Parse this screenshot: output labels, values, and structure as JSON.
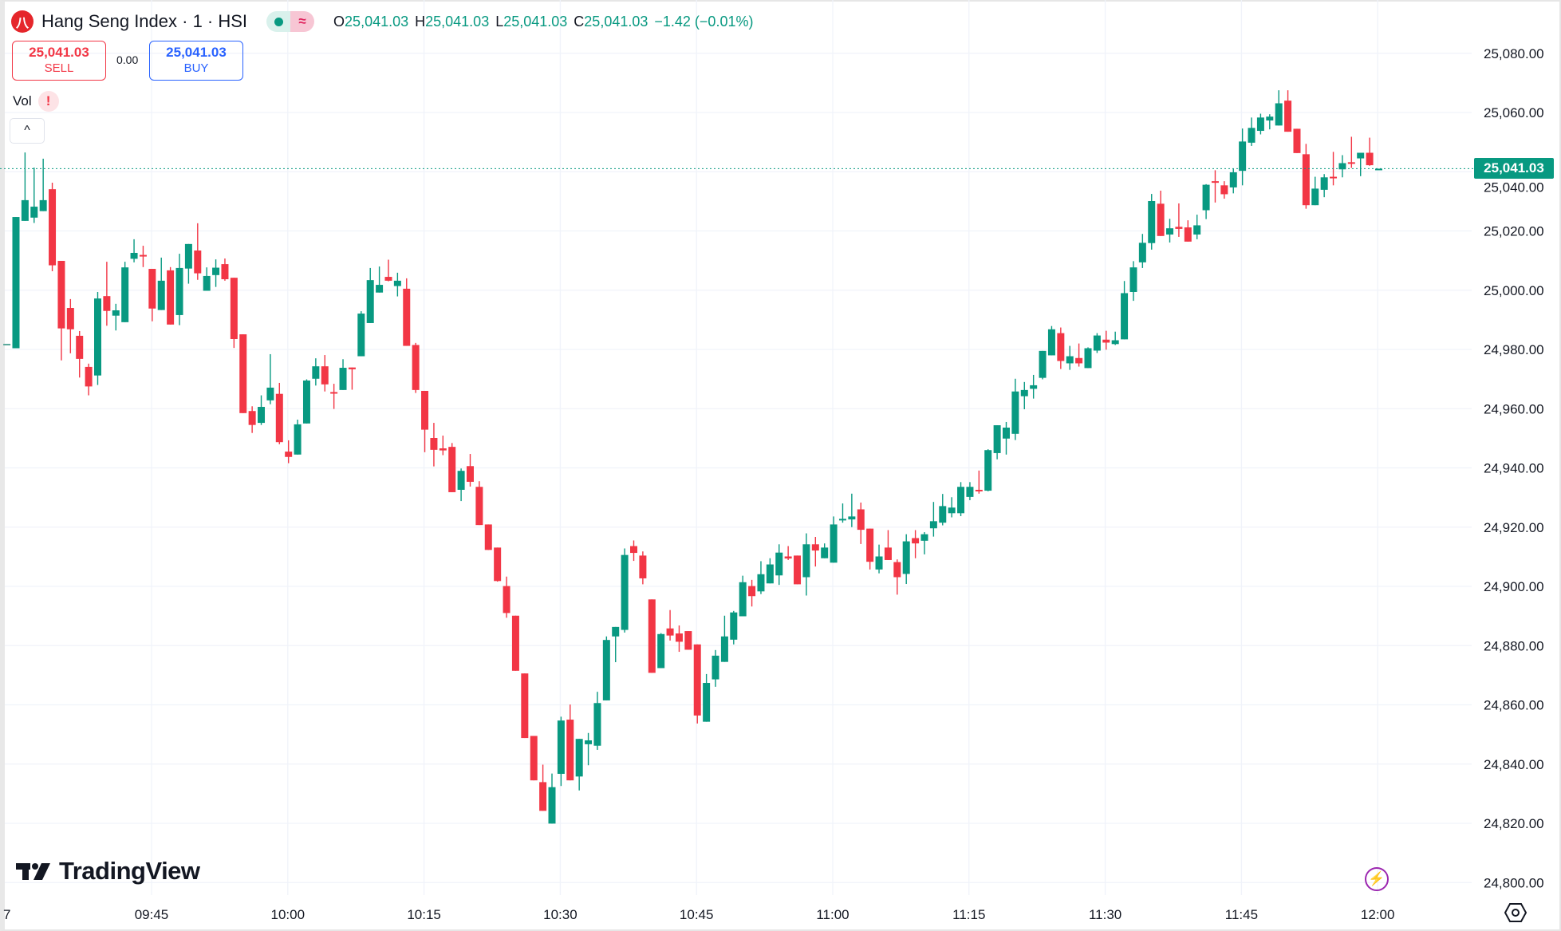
{
  "header": {
    "logo_text": "八",
    "title": "Hang Seng Index · 1 · HSI",
    "market_status": "open",
    "ohlc": {
      "o_label": "O",
      "o": "25,041.03",
      "h_label": "H",
      "h": "25,041.03",
      "l_label": "L",
      "l": "25,041.03",
      "c_label": "C",
      "c": "25,041.03",
      "change": "−1.42 (−0.01%)"
    }
  },
  "trade": {
    "sell_price": "25,041.03",
    "sell_label": "SELL",
    "spread": "0.00",
    "buy_price": "25,041.03",
    "buy_label": "BUY"
  },
  "indicators": {
    "vol_label": "Vol",
    "vol_warning": "!"
  },
  "collapse_icon": "^",
  "brand": "TradingView",
  "last_price_label": "25,041.03",
  "colors": {
    "up": "#089981",
    "down": "#F23645",
    "grid": "#f0f3fa",
    "accent": "#9c27b0"
  },
  "chart_data": {
    "type": "candlestick",
    "interval": "1",
    "format": "[open, high, low, close]",
    "ylim": [
      24795,
      25085
    ],
    "grid": true,
    "y_ticks": [
      "25,080.00",
      "25,060.00",
      "25,040.00",
      "25,020.00",
      "25,000.00",
      "24,980.00",
      "24,960.00",
      "24,940.00",
      "24,920.00",
      "24,900.00",
      "24,880.00",
      "24,860.00",
      "24,840.00",
      "24,820.00",
      "24,800.00"
    ],
    "x_ticks": [
      "7",
      "09:45",
      "10:00",
      "10:15",
      "10:30",
      "10:45",
      "11:00",
      "11:15",
      "11:30",
      "11:45",
      "12:00"
    ],
    "last_price": 25041.03,
    "candles": [
      [
        24981.9,
        24981.9,
        24981.9,
        24981.9
      ],
      [
        24980.4,
        25024.7,
        24980.4,
        25024.7
      ],
      [
        25023.4,
        25046.5,
        25023.4,
        25030.4
      ],
      [
        25024.5,
        25041.4,
        25022.7,
        25028.2
      ],
      [
        25026.7,
        25044.4,
        25026.7,
        25030.4
      ],
      [
        25034.1,
        25036.3,
        25006.4,
        25008.4
      ],
      [
        25009.9,
        25009.9,
        24976.3,
        24987.1
      ],
      [
        24994.0,
        24997.0,
        24978.7,
        24986.8
      ],
      [
        24984.6,
        24986.2,
        24970.5,
        24976.8
      ],
      [
        24974.1,
        24975.2,
        24964.5,
        24967.5
      ],
      [
        24971.2,
        24999.4,
        24968.0,
        24997.2
      ],
      [
        24998.0,
        25009.6,
        24988.0,
        24993.0
      ],
      [
        24991.4,
        24995.4,
        24986.4,
        24993.2
      ],
      [
        24989.2,
        25009.6,
        24989.2,
        25007.7
      ],
      [
        25010.6,
        25017.2,
        25009.4,
        25012.6
      ],
      [
        25011.9,
        25015.0,
        25007.8,
        25011.6
      ],
      [
        25007.2,
        25007.2,
        24989.5,
        24993.8
      ],
      [
        24993.3,
        25011.0,
        24993.3,
        25003.2
      ],
      [
        25006.7,
        25007.8,
        24988.4,
        24988.4
      ],
      [
        24991.6,
        25012.3,
        24988.2,
        25007.5
      ],
      [
        25007.3,
        25015.6,
        25002.2,
        25015.6
      ],
      [
        25013.4,
        25022.6,
        25003.5,
        25005.7
      ],
      [
        24999.8,
        25007.7,
        24999.8,
        25004.8
      ],
      [
        25005.1,
        25010.4,
        25001.1,
        25007.6
      ],
      [
        25008.8,
        25010.7,
        25003.2,
        25003.7
      ],
      [
        25004.2,
        25004.2,
        24980.5,
        24983.5
      ],
      [
        24985.1,
        24985.1,
        24958.5,
        24958.5
      ],
      [
        24959.2,
        24960.8,
        24951.8,
        24954.5
      ],
      [
        24955.2,
        24964.5,
        24954.5,
        24960.6
      ],
      [
        24962.8,
        24978.4,
        24961.5,
        24967.1
      ],
      [
        24965.0,
        24968.7,
        24948.0,
        24948.7
      ],
      [
        24945.5,
        24949.3,
        24941.6,
        24943.7
      ],
      [
        24944.5,
        24956.3,
        24944.5,
        24954.7
      ],
      [
        24955.0,
        24969.9,
        24955.0,
        24969.5
      ],
      [
        24970.1,
        24977.0,
        24967.8,
        24974.3
      ],
      [
        24974.3,
        24978.1,
        24965.8,
        24968.2
      ],
      [
        24965.6,
        24968.4,
        24959.9,
        24965.3
      ],
      [
        24966.3,
        24976.7,
        24966.3,
        24973.8
      ],
      [
        24973.9,
        24973.9,
        24966.4,
        24973.3
      ],
      [
        24977.7,
        24992.9,
        24977.7,
        24992.1
      ],
      [
        24988.9,
        25007.5,
        24988.9,
        25003.4
      ],
      [
        24999.2,
        25008.0,
        24999.2,
        25001.8
      ],
      [
        25004.5,
        25010.3,
        25003.0,
        25003.2
      ],
      [
        25001.4,
        25005.9,
        24997.9,
        25003.2
      ],
      [
        25000.5,
        25004.0,
        24981.2,
        24981.2
      ],
      [
        24981.5,
        24982.2,
        24965.3,
        24966.3
      ],
      [
        24966.0,
        24966.0,
        24945.3,
        24952.9
      ],
      [
        24950.1,
        24955.2,
        24940.5,
        24946.1
      ],
      [
        24946.6,
        24950.9,
        24944.3,
        24945.9
      ],
      [
        24947.1,
        24948.4,
        24931.8,
        24931.8
      ],
      [
        24932.6,
        24939.8,
        24928.8,
        24939.0
      ],
      [
        24940.6,
        24944.7,
        24933.7,
        24935.3
      ],
      [
        24933.6,
        24935.5,
        24920.7,
        24920.7
      ],
      [
        24920.9,
        24920.9,
        24912.3,
        24912.3
      ],
      [
        24913.1,
        24913.1,
        24901.6,
        24901.8
      ],
      [
        24900.1,
        24903.3,
        24889.4,
        24891.0
      ],
      [
        24890.1,
        24890.1,
        24871.5,
        24871.5
      ],
      [
        24870.6,
        24870.6,
        24848.8,
        24848.8
      ],
      [
        24849.5,
        24849.5,
        24834.5,
        24834.5
      ],
      [
        24833.9,
        24839.8,
        24824.2,
        24824.2
      ],
      [
        24819.9,
        24836.8,
        24819.9,
        24832.2
      ],
      [
        24836.7,
        24856.0,
        24832.6,
        24854.7
      ],
      [
        24855.0,
        24860.1,
        24834.5,
        24834.5
      ],
      [
        24835.8,
        24848.5,
        24831.1,
        24848.5
      ],
      [
        24846.7,
        24850.5,
        24839.6,
        24848.0
      ],
      [
        24846.2,
        24864.4,
        24844.8,
        24860.6
      ],
      [
        24861.5,
        24883.1,
        24861.5,
        24881.9
      ],
      [
        24883.1,
        24886.3,
        24874.4,
        24886.3
      ],
      [
        24885.3,
        24912.8,
        24884.4,
        24910.6
      ],
      [
        24913.6,
        24915.5,
        24908.6,
        24911.3
      ],
      [
        24910.4,
        24911.8,
        24900.7,
        24902.7
      ],
      [
        24895.6,
        24895.6,
        24870.8,
        24870.8
      ],
      [
        24872.4,
        24884.2,
        24872.4,
        24883.9
      ],
      [
        24885.8,
        24892.0,
        24881.7,
        24883.4
      ],
      [
        24884.1,
        24886.8,
        24877.9,
        24881.3
      ],
      [
        24884.9,
        24884.9,
        24878.6,
        24878.6
      ],
      [
        24880.4,
        24880.4,
        24853.7,
        24856.4
      ],
      [
        24854.3,
        24870.4,
        24854.3,
        24867.4
      ],
      [
        24868.6,
        24878.5,
        24866.1,
        24876.6
      ],
      [
        24874.5,
        24890.1,
        24874.5,
        24883.1
      ],
      [
        24882.0,
        24891.7,
        24880.4,
        24891.2
      ],
      [
        24889.9,
        24903.6,
        24889.9,
        24901.4
      ],
      [
        24900.1,
        24902.2,
        24893.2,
        24896.7
      ],
      [
        24898.3,
        24908.5,
        24897.4,
        24904.1
      ],
      [
        24901.0,
        24909.5,
        24901.0,
        24907.4
      ],
      [
        24903.7,
        24914.2,
        24900.5,
        24911.4
      ],
      [
        24910.1,
        24913.6,
        24908.9,
        24909.4
      ],
      [
        24910.4,
        24910.4,
        24900.7,
        24900.7
      ],
      [
        24903.1,
        24917.9,
        24896.9,
        24914.2
      ],
      [
        24914.2,
        24916.7,
        24906.7,
        24912.1
      ],
      [
        24909.5,
        24914.5,
        24909.5,
        24913.1
      ],
      [
        24908.0,
        24923.6,
        24908.0,
        24920.9
      ],
      [
        24922.3,
        24928.0,
        24921.5,
        24922.8
      ],
      [
        24922.6,
        24931.3,
        24920.0,
        24923.6
      ],
      [
        24926.0,
        24928.3,
        24914.3,
        24919.1
      ],
      [
        24919.5,
        24919.5,
        24905.7,
        24908.3
      ],
      [
        24905.7,
        24914.1,
        24904.4,
        24910.1
      ],
      [
        24913.1,
        24919.0,
        24908.9,
        24908.9
      ],
      [
        24908.2,
        24909.1,
        24897.2,
        24903.1
      ],
      [
        24904.2,
        24917.6,
        24900.8,
        24915.2
      ],
      [
        24916.3,
        24919.0,
        24909.5,
        24914.5
      ],
      [
        24915.4,
        24918.3,
        24910.8,
        24917.6
      ],
      [
        24919.6,
        24928.5,
        24916.8,
        24922.0
      ],
      [
        24921.5,
        24931.2,
        24920.6,
        24927.1
      ],
      [
        24924.7,
        24930.1,
        24923.3,
        24926.6
      ],
      [
        24924.7,
        24935.2,
        24923.7,
        24933.6
      ],
      [
        24930.2,
        24935.2,
        24929.1,
        24933.6
      ],
      [
        24932.6,
        24939.1,
        24931.3,
        24932.3
      ],
      [
        24932.3,
        24946.3,
        24932.1,
        24946.0
      ],
      [
        24945.0,
        24954.4,
        24942.9,
        24954.4
      ],
      [
        24949.9,
        24955.5,
        24944.5,
        24953.6
      ],
      [
        24951.5,
        24970.1,
        24949.4,
        24965.8
      ],
      [
        24964.2,
        24969.0,
        24959.8,
        24966.3
      ],
      [
        24966.7,
        24971.4,
        24963.4,
        24967.9
      ],
      [
        24970.4,
        24979.5,
        24969.9,
        24979.5
      ],
      [
        24978.0,
        24987.9,
        24978.0,
        24986.8
      ],
      [
        24985.5,
        24987.4,
        24973.4,
        24976.1
      ],
      [
        24975.3,
        24981.2,
        24973.1,
        24977.7
      ],
      [
        24977.1,
        24982.0,
        24974.2,
        24975.3
      ],
      [
        24973.7,
        24980.7,
        24973.7,
        24980.4
      ],
      [
        24979.6,
        24985.5,
        24978.8,
        24984.7
      ],
      [
        24983.3,
        24986.3,
        24979.9,
        24982.3
      ],
      [
        24981.8,
        24986.0,
        24981.5,
        24983.1
      ],
      [
        24983.4,
        25003.1,
        24983.4,
        24999.0
      ],
      [
        24999.4,
        25009.8,
        24996.4,
        25007.7
      ],
      [
        25009.4,
        25019.0,
        25007.5,
        25016.0
      ],
      [
        25015.9,
        25032.5,
        25013.7,
        25030.1
      ],
      [
        25029.2,
        25033.6,
        25018.3,
        25018.3
      ],
      [
        25018.8,
        25024.1,
        25016.1,
        25020.9
      ],
      [
        25021.4,
        25029.3,
        25018.0,
        25020.7
      ],
      [
        25021.2,
        25023.6,
        25016.4,
        25016.4
      ],
      [
        25018.8,
        25025.5,
        25017.2,
        25021.9
      ],
      [
        25027.0,
        25035.8,
        25024.0,
        25035.6
      ],
      [
        25036.8,
        25040.5,
        25029.6,
        25036.6
      ],
      [
        25035.4,
        25036.8,
        25030.9,
        25032.4
      ],
      [
        25034.7,
        25041.0,
        25032.7,
        25039.8
      ],
      [
        25040.3,
        25054.6,
        25035.4,
        25050.2
      ],
      [
        25049.8,
        25058.3,
        25048.7,
        25054.8
      ],
      [
        25053.8,
        25059.6,
        25052.6,
        25058.3
      ],
      [
        25057.3,
        25059.4,
        25054.3,
        25058.6
      ],
      [
        25055.6,
        25067.5,
        25055.6,
        25063.1
      ],
      [
        25064.0,
        25067.5,
        25053.5,
        25053.5
      ],
      [
        25054.5,
        25054.5,
        25046.3,
        25046.3
      ],
      [
        25045.9,
        25049.4,
        25027.5,
        25028.7
      ],
      [
        25028.7,
        25038.3,
        25028.7,
        25034.3
      ],
      [
        25033.9,
        25039.2,
        25031.4,
        25038.1
      ],
      [
        25038.3,
        25046.7,
        25035.4,
        25037.9
      ],
      [
        25040.8,
        25045.6,
        25038.1,
        25042.9
      ],
      [
        25043.2,
        25051.8,
        25041.3,
        25043.0
      ],
      [
        25044.5,
        25046.4,
        25038.5,
        25046.4
      ],
      [
        25046.4,
        25051.5,
        25042.0,
        25042.2
      ],
      [
        25041.03,
        25041.03,
        25041.03,
        25041.03
      ]
    ]
  }
}
